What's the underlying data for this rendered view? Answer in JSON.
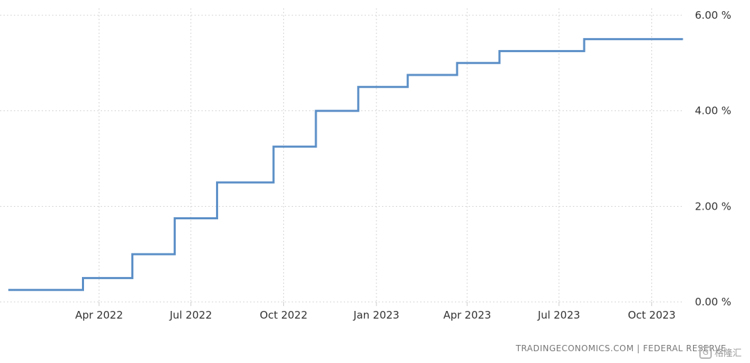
{
  "chart_data": {
    "type": "line",
    "step": true,
    "x_type": "date",
    "xlim": [
      "2022-01-01",
      "2023-11-02"
    ],
    "ylim": [
      0,
      6
    ],
    "grid": true,
    "series": [
      {
        "color": "#5b8fc7",
        "x": [
          "2022-01-01",
          "2022-03-16",
          "2022-05-04",
          "2022-06-15",
          "2022-07-27",
          "2022-09-21",
          "2022-11-02",
          "2022-12-14",
          "2023-02-01",
          "2023-03-22",
          "2023-05-03",
          "2023-07-26",
          "2023-11-01"
        ],
        "values": [
          0.25,
          0.5,
          1.0,
          1.75,
          2.5,
          3.25,
          4.0,
          4.5,
          4.75,
          5.0,
          5.25,
          5.5,
          5.5
        ]
      }
    ],
    "y_ticks": [
      {
        "value": 0,
        "label": "0.00 %"
      },
      {
        "value": 2,
        "label": "2.00 %"
      },
      {
        "value": 4,
        "label": "4.00 %"
      },
      {
        "value": 6,
        "label": "6.00 %"
      }
    ],
    "x_ticks": [
      {
        "date": "2022-04-01",
        "label": "Apr 2022"
      },
      {
        "date": "2022-07-01",
        "label": "Jul 2022"
      },
      {
        "date": "2022-10-01",
        "label": "Oct 2022"
      },
      {
        "date": "2023-01-01",
        "label": "Jan 2023"
      },
      {
        "date": "2023-04-01",
        "label": "Apr 2023"
      },
      {
        "date": "2023-07-01",
        "label": "Jul 2023"
      },
      {
        "date": "2023-10-01",
        "label": "Oct 2023"
      }
    ]
  },
  "source_text": "TRADINGECONOMICS.COM  |  FEDERAL RESERVE",
  "watermark_text": "格隆汇"
}
